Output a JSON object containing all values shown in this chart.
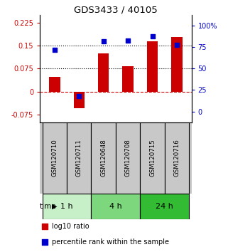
{
  "title": "GDS3433 / 40105",
  "samples": [
    "GSM120710",
    "GSM120711",
    "GSM120648",
    "GSM120708",
    "GSM120715",
    "GSM120716"
  ],
  "log10_ratio": [
    0.048,
    -0.055,
    0.125,
    0.083,
    0.165,
    0.178
  ],
  "percentile_rank": [
    72,
    18,
    82,
    83,
    88,
    78
  ],
  "groups": [
    {
      "label": "1 h",
      "indices": [
        0,
        1
      ],
      "color": "#c8f0c8"
    },
    {
      "label": "4 h",
      "indices": [
        2,
        3
      ],
      "color": "#7dd87d"
    },
    {
      "label": "24 h",
      "indices": [
        4,
        5
      ],
      "color": "#33bb33"
    }
  ],
  "ylim_left": [
    -0.1,
    0.25
  ],
  "ylim_right": [
    -12.5,
    112.5
  ],
  "yticks_left": [
    -0.075,
    0,
    0.075,
    0.15,
    0.225
  ],
  "yticks_right": [
    0,
    25,
    50,
    75,
    100
  ],
  "hlines": [
    0.15,
    0.075
  ],
  "bar_color": "#cc0000",
  "dot_color": "#0000cc",
  "bar_width": 0.45,
  "background_color": "#ffffff",
  "left_tick_color": "#cc0000",
  "right_tick_color": "#0000cc",
  "zero_line_color": "#cc0000",
  "hline_color": "#000000",
  "label_box_color": "#c8c8c8",
  "legend_square_size": 8
}
